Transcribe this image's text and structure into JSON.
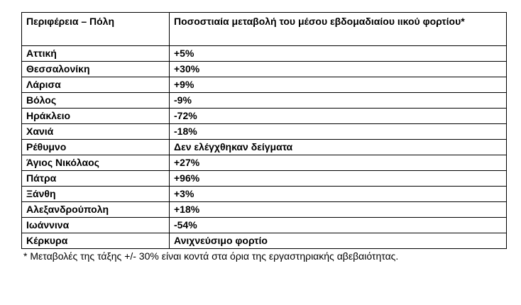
{
  "table": {
    "headers": [
      "Περιφέρεια – Πόλη",
      "Ποσοστιαία μεταβολή του μέσου εβδομαδιαίου ιικού φορτίου*"
    ],
    "rows": [
      [
        "Αττική",
        "+5%"
      ],
      [
        "Θεσσαλονίκη",
        "+30%"
      ],
      [
        "Λάρισα",
        "+9%"
      ],
      [
        "Βόλος",
        "-9%"
      ],
      [
        "Ηράκλειο",
        "-72%"
      ],
      [
        "Χανιά",
        "-18%"
      ],
      [
        "Ρέθυμνο",
        "Δεν ελέγχθηκαν δείγματα"
      ],
      [
        "Άγιος Νικόλαος",
        "+27%"
      ],
      [
        "Πάτρα",
        "+96%"
      ],
      [
        "Ξάνθη",
        "+3%"
      ],
      [
        "Αλεξανδρούπολη",
        "+18%"
      ],
      [
        "Ιωάννινα",
        "-54%"
      ],
      [
        "Κέρκυρα",
        "Ανιχνεύσιμο φορτίο"
      ]
    ]
  },
  "footnote": "* Μεταβολές της τάξης +/- 30% είναι κοντά στα όρια της εργαστηριακής αβεβαιότητας."
}
